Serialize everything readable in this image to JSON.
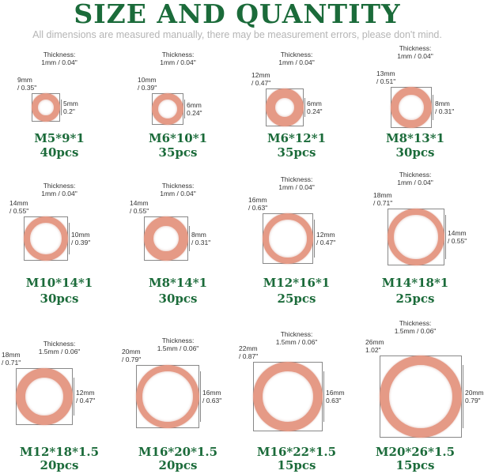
{
  "header": {
    "title": "SIZE AND QUANTITY",
    "subtitle": "All dimensions are measured manually, there may be measurement errors, please don't mind."
  },
  "colors": {
    "brand_green": "#1b6b3a",
    "copper": "#e59a86"
  },
  "washers": [
    {
      "thickness": "Thickness:\n1mm / 0.04\"",
      "outer": "9mm\n/ 0.35\"",
      "inner": "5mm\n0.2\"",
      "spec": "M5*9*1",
      "qty": "40pcs"
    },
    {
      "thickness": "Thickness:\n1mm / 0.04\"",
      "outer": "10mm\n/ 0.39\"",
      "inner": "6mm\n0.24\"",
      "spec": "M6*10*1",
      "qty": "35pcs"
    },
    {
      "thickness": "Thickness:\n1mm / 0.04\"",
      "outer": "12mm\n/ 0.47\"",
      "inner": "6mm\n0.24\"",
      "spec": "M6*12*1",
      "qty": "35pcs"
    },
    {
      "thickness": "Thickness:\n1mm / 0.04\"",
      "outer": "13mm\n/ 0.51\"",
      "inner": "8mm\n/ 0.31\"",
      "spec": "M8*13*1",
      "qty": "30pcs"
    },
    {
      "thickness": "Thickness:\n1mm / 0.04\"",
      "outer": "14mm\n/ 0.55\"",
      "inner": "10mm\n/ 0.39\"",
      "spec": "M10*14*1",
      "qty": "30pcs"
    },
    {
      "thickness": "Thickness:\n1mm / 0.04\"",
      "outer": "14mm\n/ 0.55\"",
      "inner": "8mm\n/ 0.31\"",
      "spec": "M8*14*1",
      "qty": "30pcs"
    },
    {
      "thickness": "Thickness:\n1mm / 0.04\"",
      "outer": "16mm\n/ 0.63\"",
      "inner": "12mm\n/ 0.47\"",
      "spec": "M12*16*1",
      "qty": "25pcs"
    },
    {
      "thickness": "Thickness:\n1mm / 0.04\"",
      "outer": "18mm\n/ 0.71\"",
      "inner": "14mm\n/ 0.55\"",
      "spec": "M14*18*1",
      "qty": "25pcs"
    },
    {
      "thickness": "Thickness:\n1.5mm / 0.06\"",
      "outer": "18mm\n/ 0.71\"",
      "inner": "12mm\n/ 0.47\"",
      "spec": "M12*18*1.5",
      "qty": "20pcs"
    },
    {
      "thickness": "Thickness:\n1.5mm / 0.06\"",
      "outer": "20mm\n/ 0.79\"",
      "inner": "16mm\n/ 0.63\"",
      "spec": "M16*20*1.5",
      "qty": "20pcs"
    },
    {
      "thickness": "Thickness:\n1.5mm / 0.06\"",
      "outer": "22mm\n/ 0.87\"",
      "inner": "16mm\n0.63\"",
      "spec": "M16*22*1.5",
      "qty": "15pcs"
    },
    {
      "thickness": "Thickness:\n1.5mm / 0.06\"",
      "outer": "26mm\n1.02\"",
      "inner": "20mm\n0.79\"",
      "spec": "M20*26*1.5",
      "qty": "15pcs"
    }
  ]
}
